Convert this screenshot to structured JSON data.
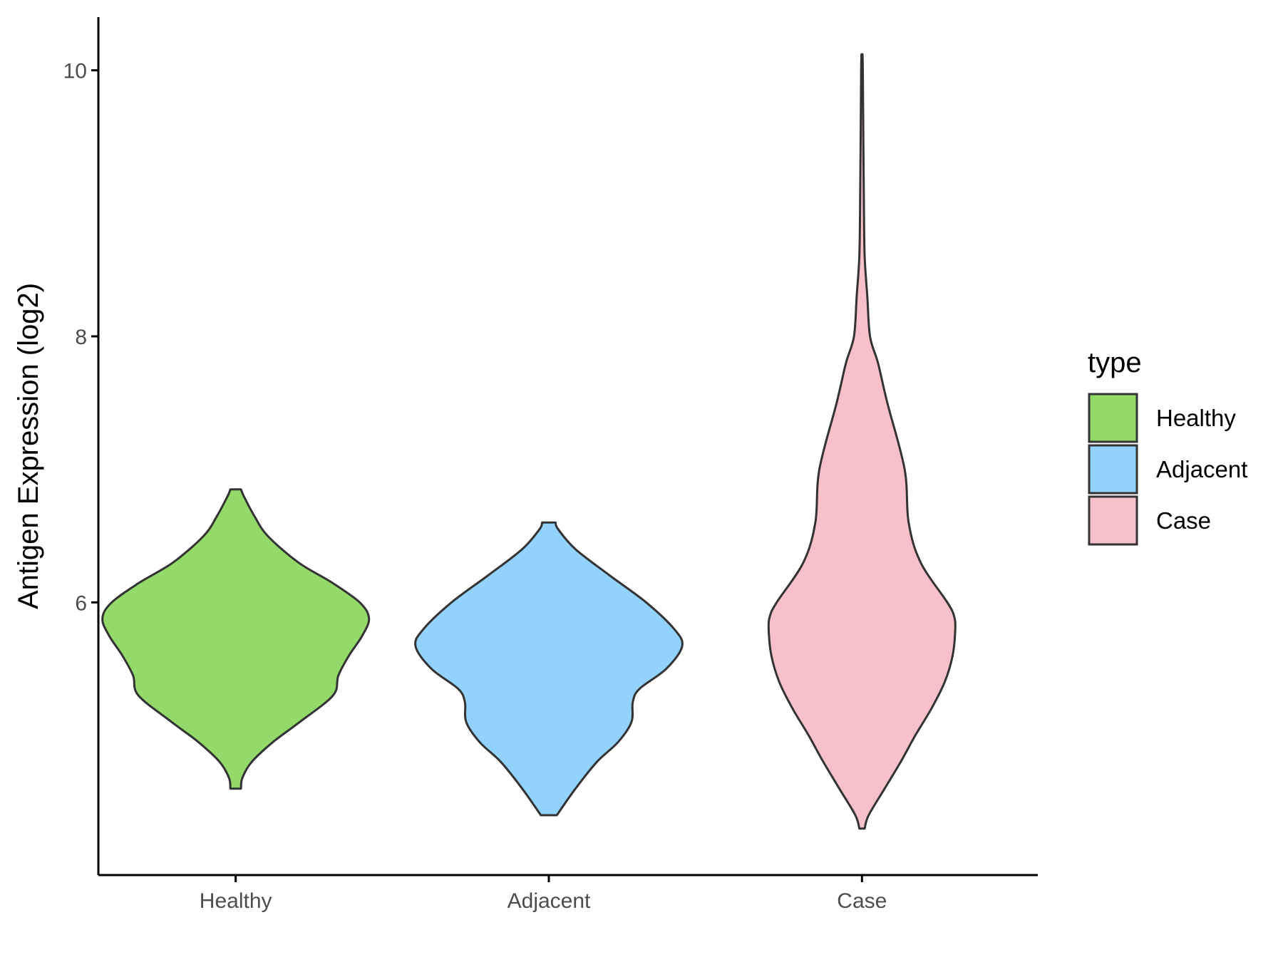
{
  "chart_data": {
    "type": "violin",
    "ylabel": "Antigen Expression (log2)",
    "xlabel": "",
    "ylim": [
      3.95,
      10.4
    ],
    "yticks": [
      6,
      8,
      10
    ],
    "categories": [
      "Healthy",
      "Adjacent",
      "Case"
    ],
    "legend": {
      "title": "type",
      "position": "right",
      "entries": [
        "Healthy",
        "Adjacent",
        "Case"
      ]
    },
    "grid": false,
    "colors": {
      "Healthy": "#93da6a",
      "Adjacent": "#92d2fd",
      "Case": "#f7c0cb",
      "outline": "#333333",
      "axis": "#000000"
    },
    "series": [
      {
        "name": "Healthy",
        "min": 4.6,
        "max": 6.85,
        "profile": [
          [
            4.6,
            0.04
          ],
          [
            4.68,
            0.05
          ],
          [
            4.8,
            0.12
          ],
          [
            4.95,
            0.28
          ],
          [
            5.1,
            0.48
          ],
          [
            5.3,
            0.73
          ],
          [
            5.45,
            0.77
          ],
          [
            5.6,
            0.85
          ],
          [
            5.75,
            0.95
          ],
          [
            5.88,
            1.0
          ],
          [
            6.0,
            0.93
          ],
          [
            6.15,
            0.72
          ],
          [
            6.3,
            0.47
          ],
          [
            6.5,
            0.24
          ],
          [
            6.65,
            0.14
          ],
          [
            6.8,
            0.06
          ],
          [
            6.85,
            0.04
          ]
        ]
      },
      {
        "name": "Adjacent",
        "min": 4.4,
        "max": 6.6,
        "profile": [
          [
            4.4,
            0.06
          ],
          [
            4.6,
            0.2
          ],
          [
            4.8,
            0.36
          ],
          [
            4.95,
            0.52
          ],
          [
            5.1,
            0.62
          ],
          [
            5.25,
            0.63
          ],
          [
            5.35,
            0.68
          ],
          [
            5.5,
            0.88
          ],
          [
            5.67,
            1.0
          ],
          [
            5.8,
            0.94
          ],
          [
            6.0,
            0.73
          ],
          [
            6.2,
            0.46
          ],
          [
            6.4,
            0.2
          ],
          [
            6.55,
            0.07
          ],
          [
            6.6,
            0.05
          ]
        ]
      },
      {
        "name": "Case",
        "min": 4.3,
        "max": 10.12,
        "profile": [
          [
            4.3,
            0.02
          ],
          [
            4.4,
            0.05
          ],
          [
            4.6,
            0.17
          ],
          [
            4.8,
            0.29
          ],
          [
            5.0,
            0.4
          ],
          [
            5.2,
            0.52
          ],
          [
            5.4,
            0.62
          ],
          [
            5.6,
            0.68
          ],
          [
            5.8,
            0.7
          ],
          [
            5.9,
            0.69
          ],
          [
            6.0,
            0.64
          ],
          [
            6.3,
            0.44
          ],
          [
            6.6,
            0.35
          ],
          [
            7.0,
            0.32
          ],
          [
            7.5,
            0.19
          ],
          [
            7.8,
            0.12
          ],
          [
            8.0,
            0.06
          ],
          [
            8.3,
            0.04
          ],
          [
            8.6,
            0.02
          ],
          [
            9.0,
            0.014
          ],
          [
            9.5,
            0.01
          ],
          [
            10.0,
            0.006
          ],
          [
            10.12,
            0.004
          ]
        ]
      }
    ]
  }
}
